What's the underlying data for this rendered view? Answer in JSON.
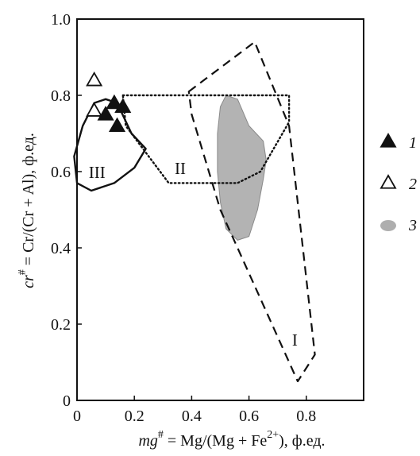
{
  "chart_data": {
    "type": "scatter",
    "xlabel": {
      "var": "mg",
      "sup": "#",
      "eq": " = Mg/(Mg + Fe",
      "sup2": "2+",
      "tail": "),  ф.ед."
    },
    "ylabel": {
      "var": "cr",
      "sup": "#",
      "rest": " = Cr/(Cr + Al),  ф.ед."
    },
    "xlim": [
      0,
      1.0
    ],
    "ylim": [
      0,
      1.0
    ],
    "xticks": [
      "0",
      "0.2",
      "0.4",
      "0.6",
      "0.8"
    ],
    "yticks": [
      "0",
      "0.2",
      "0.4",
      "0.6",
      "0.8",
      "1.0"
    ],
    "grid": false,
    "legend_position": "right",
    "series": [
      {
        "name": "1",
        "marker": "filled-triangle",
        "color": "#111111",
        "points": [
          {
            "x": 0.13,
            "y": 0.78
          },
          {
            "x": 0.16,
            "y": 0.77
          },
          {
            "x": 0.1,
            "y": 0.75
          },
          {
            "x": 0.14,
            "y": 0.72
          }
        ]
      },
      {
        "name": "2",
        "marker": "open-triangle",
        "color": "#111111",
        "points": [
          {
            "x": 0.06,
            "y": 0.84
          },
          {
            "x": 0.06,
            "y": 0.76
          }
        ]
      }
    ],
    "fields": [
      {
        "name": "3",
        "style": "shaded",
        "color": "#9a9a9a",
        "points": [
          {
            "x": 0.5,
            "y": 0.77
          },
          {
            "x": 0.52,
            "y": 0.8
          },
          {
            "x": 0.56,
            "y": 0.79
          },
          {
            "x": 0.6,
            "y": 0.72
          },
          {
            "x": 0.65,
            "y": 0.68
          },
          {
            "x": 0.66,
            "y": 0.63
          },
          {
            "x": 0.65,
            "y": 0.58
          },
          {
            "x": 0.63,
            "y": 0.5
          },
          {
            "x": 0.6,
            "y": 0.43
          },
          {
            "x": 0.56,
            "y": 0.42
          },
          {
            "x": 0.52,
            "y": 0.45
          },
          {
            "x": 0.5,
            "y": 0.52
          },
          {
            "x": 0.49,
            "y": 0.6
          },
          {
            "x": 0.49,
            "y": 0.7
          }
        ]
      }
    ],
    "regions": [
      {
        "label": "I",
        "style": "dashed",
        "label_at": {
          "x": 0.76,
          "y": 0.16
        },
        "points": [
          {
            "x": 0.39,
            "y": 0.81
          },
          {
            "x": 0.62,
            "y": 0.94
          },
          {
            "x": 0.74,
            "y": 0.72
          },
          {
            "x": 0.83,
            "y": 0.12
          },
          {
            "x": 0.77,
            "y": 0.05
          },
          {
            "x": 0.5,
            "y": 0.5
          },
          {
            "x": 0.4,
            "y": 0.75
          }
        ]
      },
      {
        "label": "II",
        "style": "dotted",
        "label_at": {
          "x": 0.36,
          "y": 0.61
        },
        "points": [
          {
            "x": 0.16,
            "y": 0.8
          },
          {
            "x": 0.74,
            "y": 0.8
          },
          {
            "x": 0.74,
            "y": 0.73
          },
          {
            "x": 0.64,
            "y": 0.6
          },
          {
            "x": 0.56,
            "y": 0.57
          },
          {
            "x": 0.32,
            "y": 0.57
          },
          {
            "x": 0.17,
            "y": 0.72
          }
        ]
      },
      {
        "label": "III",
        "style": "solid",
        "label_at": {
          "x": 0.07,
          "y": 0.6
        },
        "points": [
          {
            "x": 0.06,
            "y": 0.78
          },
          {
            "x": 0.1,
            "y": 0.79
          },
          {
            "x": 0.14,
            "y": 0.78
          },
          {
            "x": 0.19,
            "y": 0.7
          },
          {
            "x": 0.24,
            "y": 0.66
          },
          {
            "x": 0.2,
            "y": 0.61
          },
          {
            "x": 0.13,
            "y": 0.57
          },
          {
            "x": 0.05,
            "y": 0.55
          },
          {
            "x": 0.0,
            "y": 0.57
          },
          {
            "x": -0.01,
            "y": 0.64
          },
          {
            "x": 0.02,
            "y": 0.72
          }
        ]
      }
    ],
    "legend": [
      {
        "marker": "filled-triangle",
        "label": "1"
      },
      {
        "marker": "open-triangle",
        "label": "2"
      },
      {
        "marker": "shaded-blob",
        "label": "3"
      }
    ]
  }
}
